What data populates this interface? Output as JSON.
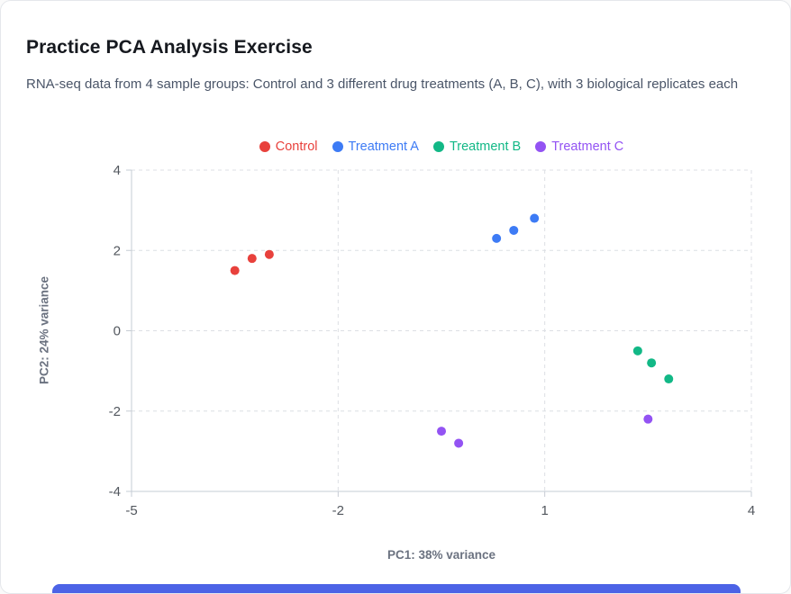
{
  "page": {
    "title": "Practice PCA Analysis Exercise",
    "subtitle": "RNA-seq data from 4 sample groups: Control and 3 different drug treatments (A, B, C), with 3 biological replicates each"
  },
  "chart_data": {
    "type": "scatter",
    "title": "",
    "xlabel": "PC1: 38% variance",
    "ylabel": "PC2: 24% variance",
    "xlim": [
      -5,
      4
    ],
    "ylim": [
      -4,
      4
    ],
    "x_ticks": [
      -5,
      -2,
      1,
      4
    ],
    "y_ticks": [
      -4,
      -2,
      0,
      2,
      4
    ],
    "grid": "dashed",
    "legend_position": "top-center",
    "series": [
      {
        "name": "Control",
        "color": "#e8413c",
        "points": [
          [
            -3.5,
            1.5
          ],
          [
            -3.25,
            1.8
          ],
          [
            -3.0,
            1.9
          ]
        ]
      },
      {
        "name": "Treatment A",
        "color": "#3d7bf5",
        "points": [
          [
            0.3,
            2.3
          ],
          [
            0.55,
            2.5
          ],
          [
            0.85,
            2.8
          ]
        ]
      },
      {
        "name": "Treatment B",
        "color": "#12b886",
        "points": [
          [
            2.35,
            -0.5
          ],
          [
            2.55,
            -0.8
          ],
          [
            2.8,
            -1.2
          ]
        ]
      },
      {
        "name": "Treatment C",
        "color": "#9353f3",
        "points": [
          [
            -0.5,
            -2.5
          ],
          [
            -0.25,
            -2.8
          ],
          [
            2.5,
            -2.2
          ]
        ]
      }
    ],
    "axis_color": "#c6ccd4",
    "grid_color": "#dcdfe4",
    "tick_label_color": "#52575e"
  },
  "footer": {
    "button_color": "#4c63e6"
  }
}
